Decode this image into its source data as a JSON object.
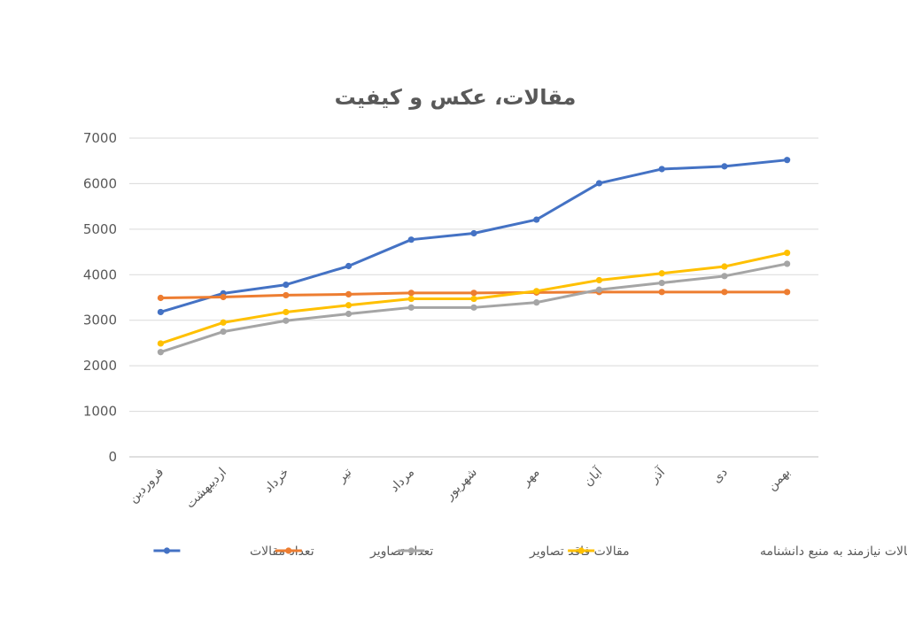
{
  "chart_data": {
    "type": "line",
    "title": "مقالات، عکس و کیفیت",
    "xlabel": "",
    "ylabel": "",
    "ylim": [
      0,
      7000
    ],
    "yticks": [
      0,
      1000,
      2000,
      3000,
      4000,
      5000,
      6000,
      7000
    ],
    "grid": true,
    "legend_position": "bottom",
    "categories": [
      "فروردین",
      "اردیبهشت",
      "خرداد",
      "تیر",
      "مرداد",
      "شهریور",
      "مهر",
      "آبان",
      "آذر",
      "دی",
      "بهمن"
    ],
    "series": [
      {
        "name": "تعداد مقالات",
        "color": "#4472c4",
        "values": [
          3180,
          3590,
          3780,
          4190,
          4770,
          4910,
          5210,
          6010,
          6320,
          6380,
          6520
        ]
      },
      {
        "name": "تعداد تصاویر",
        "color": "#ed7d31",
        "values": [
          3490,
          3510,
          3550,
          3570,
          3600,
          3600,
          3610,
          3620,
          3620,
          3620,
          3620
        ]
      },
      {
        "name": "مقالات فاقد تصاویر",
        "color": "#a5a5a5",
        "values": [
          2300,
          2750,
          2990,
          3140,
          3280,
          3280,
          3390,
          3670,
          3820,
          3970,
          4240
        ]
      },
      {
        "name": "مقالات نیازمند به منبع دانشنامه",
        "color": "#ffc000",
        "values": [
          2490,
          2950,
          3180,
          3330,
          3470,
          3470,
          3640,
          3880,
          4030,
          4180,
          4480
        ]
      }
    ]
  }
}
